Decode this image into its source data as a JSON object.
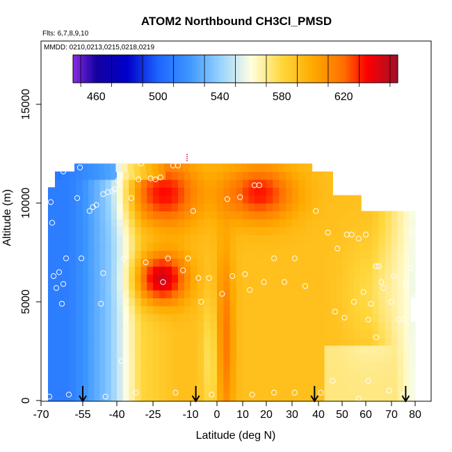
{
  "chart_data": {
    "type": "heatmap",
    "title": "ATOM2 Northbound CH3Cl_PMSD",
    "flights_label": "Flts: 6,7,8,9,10",
    "dates_label": "MMDD: 0210,0213,0215,0218,0219",
    "xlabel": "Latitude (deg N)",
    "ylabel": "Altitude (m)",
    "xlim": [
      -70,
      82
    ],
    "ylim": [
      0,
      17500
    ],
    "x_ticks": [
      -70,
      -55,
      -40,
      -25,
      -10,
      0,
      10,
      20,
      30,
      40,
      50,
      60,
      70,
      80
    ],
    "y_ticks": [
      0,
      5000,
      10000,
      15000
    ],
    "colorbar": {
      "range": [
        445,
        655
      ],
      "tick_values": [
        460,
        500,
        540,
        580,
        620
      ],
      "tick_labels": [
        "460",
        "500",
        "540",
        "580",
        "620"
      ],
      "colors": [
        "#8a2be2",
        "#00008b",
        "#1e64ff",
        "#87ceff",
        "#ffffe0",
        "#ffd700",
        "#ff8c00",
        "#ff0000",
        "#a0102a"
      ]
    },
    "arrows_latitude": [
      -55,
      -8,
      38.5,
      76
    ],
    "extent": {
      "lat_min": -67.5,
      "lat_max": 80,
      "alt_min": 0,
      "alt_max": 12000
    },
    "grid": false
  }
}
